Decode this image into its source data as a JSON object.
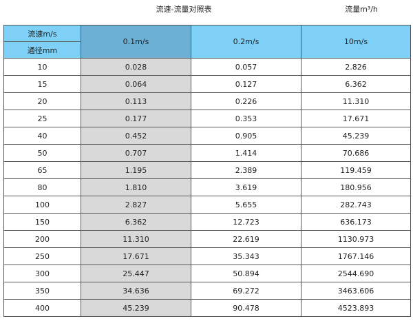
{
  "title": "流速-流量对照表",
  "unit_label": "流量m³/h",
  "header": {
    "velocity_label": "流速m/s",
    "diameter_label": "通径mm",
    "columns": [
      "0.1m/s",
      "0.2m/s",
      "10m/s"
    ]
  },
  "rows": [
    [
      "10",
      "0.028",
      "0.057",
      "2.826"
    ],
    [
      "15",
      "0.064",
      "0.127",
      "6.362"
    ],
    [
      "20",
      "0.113",
      "0.226",
      "11.310"
    ],
    [
      "25",
      "0.177",
      "0.353",
      "17.671"
    ],
    [
      "40",
      "0.452",
      "0.905",
      "45.239"
    ],
    [
      "50",
      "0.707",
      "1.414",
      "70.686"
    ],
    [
      "65",
      "1.195",
      "2.389",
      "119.459"
    ],
    [
      "80",
      "1.810",
      "3.619",
      "180.956"
    ],
    [
      "100",
      "2.827",
      "5.655",
      "282.743"
    ],
    [
      "150",
      "6.362",
      "12.723",
      "636.173"
    ],
    [
      "200",
      "11.310",
      "22.619",
      "1130.973"
    ],
    [
      "250",
      "17.671",
      "35.343",
      "1767.146"
    ],
    [
      "300",
      "25.447",
      "50.894",
      "2544.690"
    ],
    [
      "350",
      "34.636",
      "69.272",
      "3463.606"
    ],
    [
      "400",
      "45.239",
      "90.478",
      "4523.893"
    ]
  ],
  "colors": {
    "header": "#7fd0f6",
    "header_highlight": "#6cb0d6",
    "highlight_column": "#d9d9d9"
  }
}
